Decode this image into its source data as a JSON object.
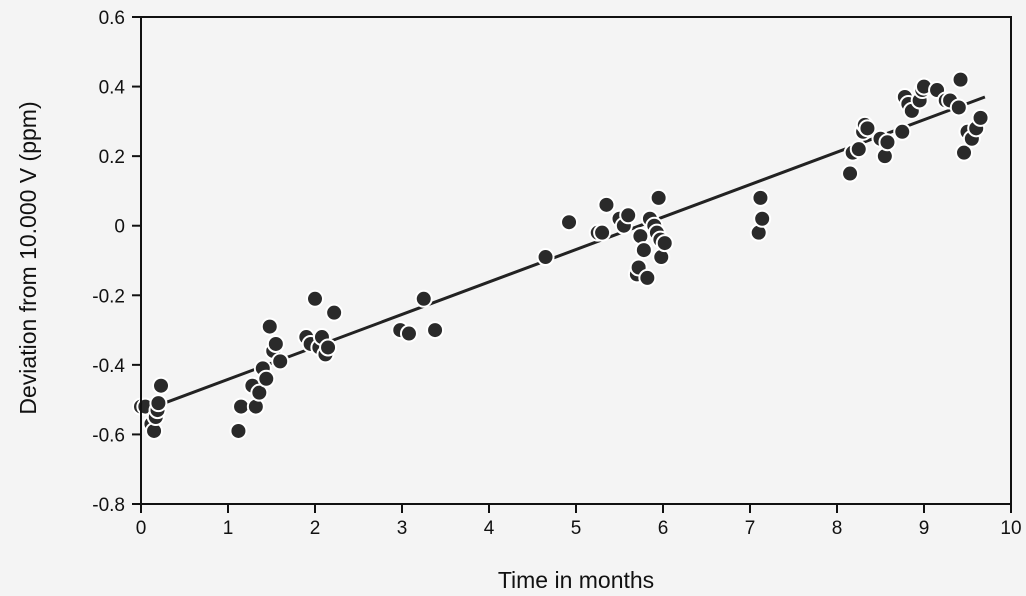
{
  "chart_data": {
    "type": "scatter",
    "title": "",
    "xlabel": "Time in months",
    "ylabel": "Deviation from 10.000 V  (ppm)",
    "xlim": [
      0,
      10
    ],
    "ylim": [
      -0.8,
      0.6
    ],
    "xticks": [
      0,
      1,
      2,
      3,
      4,
      5,
      6,
      7,
      8,
      9,
      10
    ],
    "xtick_labels": [
      "0",
      "1",
      "2",
      "3",
      "4",
      "5",
      "6",
      "7",
      "8",
      "9",
      "10"
    ],
    "yticks": [
      -0.8,
      -0.6,
      -0.4,
      -0.2,
      0,
      0.2,
      0.4,
      0.6
    ],
    "ytick_labels": [
      "-0.8",
      "-0.6",
      "-0.4",
      "-0.2",
      "0",
      "0.2",
      "0.4",
      "0.6"
    ],
    "grid": false,
    "legend": "none",
    "marker_color": "#2a2a2a",
    "marker_edge_color": "#ffffff",
    "fit_line": {
      "x": [
        0,
        9.7
      ],
      "y": [
        -0.535,
        0.37
      ]
    },
    "series": [
      {
        "points": [
          [
            0.0,
            -0.52
          ],
          [
            0.05,
            -0.52
          ],
          [
            0.12,
            -0.57
          ],
          [
            0.15,
            -0.59
          ],
          [
            0.17,
            -0.55
          ],
          [
            0.19,
            -0.53
          ],
          [
            0.2,
            -0.51
          ],
          [
            0.23,
            -0.46
          ],
          [
            1.12,
            -0.59
          ],
          [
            1.15,
            -0.52
          ],
          [
            1.28,
            -0.46
          ],
          [
            1.32,
            -0.52
          ],
          [
            1.36,
            -0.48
          ],
          [
            1.4,
            -0.41
          ],
          [
            1.44,
            -0.44
          ],
          [
            1.48,
            -0.29
          ],
          [
            1.52,
            -0.36
          ],
          [
            1.55,
            -0.34
          ],
          [
            1.6,
            -0.39
          ],
          [
            1.9,
            -0.32
          ],
          [
            1.95,
            -0.34
          ],
          [
            2.0,
            -0.21
          ],
          [
            2.05,
            -0.35
          ],
          [
            2.08,
            -0.32
          ],
          [
            2.12,
            -0.37
          ],
          [
            2.15,
            -0.35
          ],
          [
            2.22,
            -0.25
          ],
          [
            2.98,
            -0.3
          ],
          [
            3.08,
            -0.31
          ],
          [
            3.25,
            -0.21
          ],
          [
            3.38,
            -0.3
          ],
          [
            4.65,
            -0.09
          ],
          [
            4.92,
            0.01
          ],
          [
            5.25,
            -0.02
          ],
          [
            5.3,
            -0.02
          ],
          [
            5.35,
            0.06
          ],
          [
            5.5,
            0.02
          ],
          [
            5.55,
            0.0
          ],
          [
            5.6,
            0.03
          ],
          [
            5.7,
            -0.14
          ],
          [
            5.72,
            -0.12
          ],
          [
            5.74,
            -0.03
          ],
          [
            5.78,
            -0.07
          ],
          [
            5.82,
            -0.15
          ],
          [
            5.85,
            0.02
          ],
          [
            5.9,
            0.0
          ],
          [
            5.93,
            -0.02
          ],
          [
            5.95,
            0.08
          ],
          [
            5.97,
            -0.04
          ],
          [
            5.98,
            -0.09
          ],
          [
            6.02,
            -0.05
          ],
          [
            7.1,
            -0.02
          ],
          [
            7.12,
            0.08
          ],
          [
            7.14,
            0.02
          ],
          [
            8.15,
            0.15
          ],
          [
            8.18,
            0.21
          ],
          [
            8.25,
            0.22
          ],
          [
            8.3,
            0.27
          ],
          [
            8.32,
            0.29
          ],
          [
            8.35,
            0.28
          ],
          [
            8.5,
            0.25
          ],
          [
            8.55,
            0.2
          ],
          [
            8.58,
            0.24
          ],
          [
            8.75,
            0.27
          ],
          [
            8.78,
            0.37
          ],
          [
            8.82,
            0.35
          ],
          [
            8.86,
            0.33
          ],
          [
            8.95,
            0.36
          ],
          [
            8.98,
            0.39
          ],
          [
            9.0,
            0.4
          ],
          [
            9.15,
            0.39
          ],
          [
            9.25,
            0.36
          ],
          [
            9.3,
            0.36
          ],
          [
            9.4,
            0.34
          ],
          [
            9.42,
            0.42
          ],
          [
            9.46,
            0.21
          ],
          [
            9.5,
            0.27
          ],
          [
            9.55,
            0.25
          ],
          [
            9.6,
            0.28
          ],
          [
            9.65,
            0.31
          ]
        ]
      }
    ]
  }
}
